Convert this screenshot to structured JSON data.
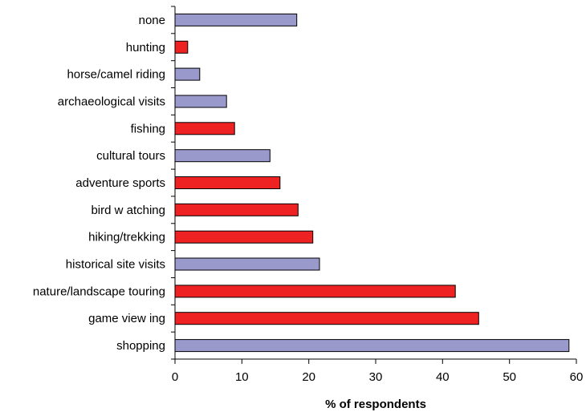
{
  "chart_data": {
    "type": "bar",
    "orientation": "horizontal",
    "title": "",
    "xlabel": "% of respondents",
    "ylabel": "",
    "xlim": [
      0,
      60
    ],
    "x_ticks": [
      0,
      10,
      20,
      30,
      40,
      50,
      60
    ],
    "grid": false,
    "legend": "none",
    "colors": {
      "lavender": "#9999cc",
      "red": "#ee2222",
      "outline": "#000000",
      "axis": "#000000"
    },
    "categories": [
      "none",
      "hunting",
      "horse/camel riding",
      "archaeological visits",
      "fishing",
      "cultural tours",
      "adventure sports",
      "bird w atching",
      "hiking/trekking",
      "historical site visits",
      "nature/landscape touring",
      "game view ing",
      "shopping"
    ],
    "values": [
      18.2,
      1.9,
      3.7,
      7.7,
      8.9,
      14.2,
      15.7,
      18.4,
      20.6,
      21.6,
      41.9,
      45.4,
      58.9
    ],
    "bar_colors": [
      "lavender",
      "red",
      "lavender",
      "lavender",
      "red",
      "lavender",
      "red",
      "red",
      "red",
      "lavender",
      "red",
      "red",
      "lavender"
    ]
  }
}
